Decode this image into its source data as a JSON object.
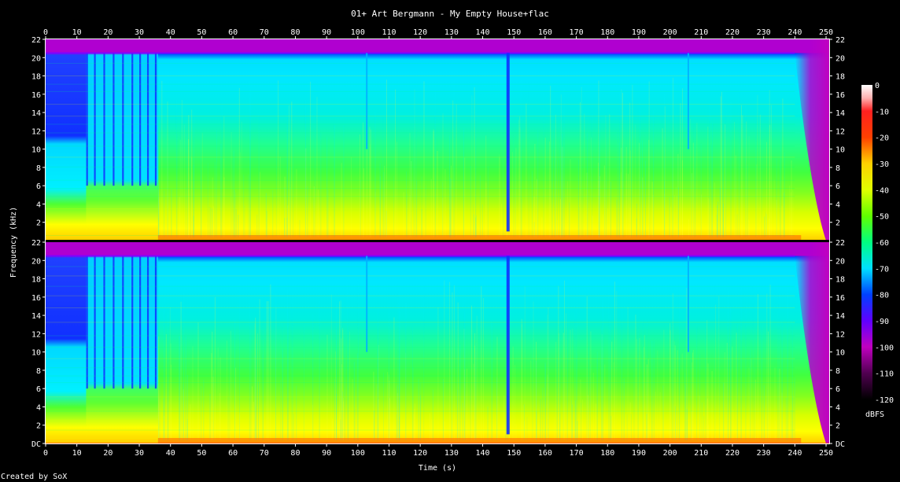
{
  "title": "01+ Art Bergmann - My Empty House+flac",
  "credit": "Created by SoX",
  "chart_data": {
    "type": "heatmap",
    "kind": "spectrogram",
    "channels": 2,
    "xlabel": "Time (s)",
    "ylabel": "Frequency (kHz)",
    "xlim": [
      0,
      251
    ],
    "ylim": [
      0,
      22
    ],
    "x_ticks": [
      "0",
      "10",
      "20",
      "30",
      "40",
      "50",
      "60",
      "70",
      "80",
      "90",
      "100",
      "110",
      "120",
      "130",
      "140",
      "150",
      "160",
      "170",
      "180",
      "190",
      "200",
      "210",
      "220",
      "230",
      "240",
      "250"
    ],
    "y_ticks": [
      "DC",
      "2",
      "4",
      "6",
      "8",
      "10",
      "12",
      "14",
      "16",
      "18",
      "20",
      "22"
    ],
    "top_channel_y_ticks": [
      "2",
      "4",
      "6",
      "8",
      "10",
      "12",
      "14",
      "16",
      "18",
      "20",
      "22"
    ],
    "colorbar": {
      "label": "dBFS",
      "ticks": [
        "0",
        "-10",
        "-20",
        "-30",
        "-40",
        "-50",
        "-60",
        "-70",
        "-80",
        "-90",
        "-100",
        "-110",
        "-120"
      ],
      "range": [
        -120,
        0
      ],
      "stops": [
        {
          "db": -120,
          "color": "#000000"
        },
        {
          "db": -110,
          "color": "#500050"
        },
        {
          "db": -100,
          "color": "#c000c0"
        },
        {
          "db": -90,
          "color": "#6000ff"
        },
        {
          "db": -80,
          "color": "#0040ff"
        },
        {
          "db": -70,
          "color": "#00e0ff"
        },
        {
          "db": -60,
          "color": "#00ff80"
        },
        {
          "db": -50,
          "color": "#60ff00"
        },
        {
          "db": -40,
          "color": "#e0ff00"
        },
        {
          "db": -30,
          "color": "#ffd000"
        },
        {
          "db": -20,
          "color": "#ff4000"
        },
        {
          "db": -10,
          "color": "#ff2020"
        },
        {
          "db": -5,
          "color": "#ffb0b0"
        },
        {
          "db": 0,
          "color": "#ffffff"
        }
      ]
    },
    "cutoff_khz": 20.5,
    "cutoff_color": "#8000ff",
    "above_cutoff_color": "#b000d0",
    "regions": [
      {
        "t_start": 0,
        "t_end": 13,
        "description_color_low": "#ffe000",
        "description_color_mid": "#00f0ff",
        "description_color_high": "#2040ff"
      },
      {
        "t_start": 13,
        "t_end": 36,
        "description_color_low": "#ffe000",
        "description_color_mid": "#30ff60",
        "description_color_high": "#00e0ff"
      },
      {
        "t_start": 36,
        "t_end": 240,
        "description_color_low": "#ffff00",
        "description_color_mid": "#50ff30",
        "description_color_high": "#00e8ff"
      },
      {
        "t_start": 240,
        "t_end": 251,
        "description_color_low": "#ff0000",
        "description_color_mid": "#00ffff",
        "description_color_high": "#c000c0"
      }
    ],
    "dropouts_s": [
      148,
      103,
      206
    ]
  }
}
